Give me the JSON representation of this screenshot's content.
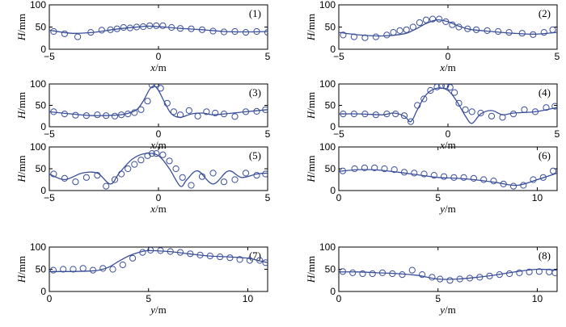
{
  "colors": {
    "series": "#3a4f9a",
    "axes": "#000000"
  },
  "chart_data": [
    {
      "type": "scatter",
      "label": "(1)",
      "xlabel_var": "x",
      "xlabel_unit": "/m",
      "ylabel_var": "H",
      "ylabel_unit": "/mm",
      "xlim": [
        -5,
        5
      ],
      "ylim": [
        0,
        100
      ],
      "xticks": [
        -5,
        0,
        5
      ],
      "yticks": [
        0,
        50,
        100
      ],
      "series": [
        {
          "mode": "line",
          "x": [
            -5,
            -4,
            -3,
            -2,
            -1,
            -0.5,
            0,
            1,
            2,
            3,
            4,
            5
          ],
          "y": [
            43,
            36,
            38,
            45,
            50,
            52,
            51,
            47,
            44,
            40,
            39,
            40
          ]
        },
        {
          "mode": "markers",
          "x": [
            -4.8,
            -4.3,
            -3.7,
            -3.1,
            -2.6,
            -2.2,
            -1.9,
            -1.6,
            -1.3,
            -1.0,
            -0.7,
            -0.4,
            -0.1,
            0.2,
            0.6,
            1.0,
            1.5,
            2.0,
            2.5,
            3.0,
            3.5,
            4.0,
            4.5,
            5.0
          ],
          "y": [
            40,
            35,
            28,
            38,
            43,
            44,
            46,
            49,
            48,
            50,
            51,
            53,
            53,
            53,
            49,
            47,
            46,
            44,
            41,
            39,
            40,
            38,
            40,
            38
          ]
        }
      ]
    },
    {
      "type": "scatter",
      "label": "(2)",
      "xlabel_var": "x",
      "xlabel_unit": "/m",
      "ylabel_var": "H",
      "ylabel_unit": "/mm",
      "xlim": [
        -5,
        5
      ],
      "ylim": [
        0,
        100
      ],
      "xticks": [
        -5,
        0,
        5
      ],
      "yticks": [
        0,
        50,
        100
      ],
      "series": [
        {
          "mode": "line",
          "x": [
            -5,
            -4,
            -3,
            -2,
            -1.5,
            -1,
            -0.5,
            0,
            0.5,
            1,
            2,
            3,
            4,
            5
          ],
          "y": [
            38,
            32,
            30,
            35,
            45,
            58,
            66,
            62,
            52,
            45,
            40,
            36,
            34,
            38
          ]
        },
        {
          "mode": "markers",
          "x": [
            -4.8,
            -4.3,
            -3.8,
            -3.3,
            -2.8,
            -2.5,
            -2.2,
            -1.9,
            -1.6,
            -1.3,
            -1.0,
            -0.7,
            -0.4,
            -0.1,
            0.2,
            0.5,
            0.9,
            1.3,
            1.8,
            2.3,
            2.8,
            3.4,
            3.9,
            4.4,
            4.8
          ],
          "y": [
            32,
            28,
            26,
            28,
            32,
            38,
            42,
            44,
            50,
            60,
            66,
            68,
            68,
            62,
            55,
            50,
            46,
            44,
            42,
            40,
            38,
            36,
            33,
            38,
            44
          ]
        }
      ]
    },
    {
      "type": "scatter",
      "label": "(3)",
      "xlabel_var": "x",
      "xlabel_unit": "/m",
      "ylabel_var": "H",
      "ylabel_unit": "/mm",
      "xlim": [
        -5,
        5
      ],
      "ylim": [
        0,
        100
      ],
      "xticks": [
        -5,
        0,
        5
      ],
      "yticks": [
        0,
        50,
        100
      ],
      "series": [
        {
          "mode": "line",
          "x": [
            -5,
            -4,
            -3,
            -2,
            -1.5,
            -1,
            -0.7,
            -0.4,
            -0.2,
            0,
            0.3,
            0.6,
            1,
            1.5,
            2,
            2.5,
            3,
            4,
            5
          ],
          "y": [
            35,
            30,
            26,
            27,
            30,
            40,
            60,
            88,
            95,
            85,
            55,
            30,
            22,
            30,
            32,
            28,
            30,
            35,
            40
          ]
        },
        {
          "mode": "markers",
          "x": [
            -4.8,
            -4.3,
            -3.8,
            -3.3,
            -2.8,
            -2.4,
            -2.0,
            -1.7,
            -1.4,
            -1.1,
            -0.8,
            -0.5,
            -0.3,
            -0.1,
            0.1,
            0.4,
            0.7,
            1.0,
            1.4,
            1.8,
            2.2,
            2.6,
            3.0,
            3.5,
            4.0,
            4.5,
            4.9
          ],
          "y": [
            35,
            30,
            27,
            26,
            28,
            26,
            25,
            28,
            30,
            33,
            40,
            60,
            98,
            100,
            90,
            55,
            35,
            28,
            38,
            25,
            35,
            32,
            30,
            24,
            35,
            36,
            40
          ]
        }
      ]
    },
    {
      "type": "scatter",
      "label": "(4)",
      "xlabel_var": "x",
      "xlabel_unit": "/m",
      "ylabel_var": "H",
      "ylabel_unit": "/mm",
      "xlim": [
        -5,
        5
      ],
      "ylim": [
        0,
        100
      ],
      "xticks": [
        -5,
        0,
        5
      ],
      "yticks": [
        0,
        50,
        100
      ],
      "series": [
        {
          "mode": "line",
          "x": [
            -5,
            -4,
            -3,
            -2.5,
            -2,
            -1.7,
            -1.4,
            -1,
            -0.5,
            0,
            0.4,
            0.8,
            1.1,
            1.5,
            2,
            2.5,
            3,
            4,
            5
          ],
          "y": [
            30,
            30,
            28,
            32,
            25,
            12,
            40,
            75,
            90,
            85,
            60,
            25,
            8,
            30,
            38,
            28,
            32,
            35,
            45
          ]
        },
        {
          "mode": "markers",
          "x": [
            -4.8,
            -4.3,
            -3.8,
            -3.3,
            -2.8,
            -2.4,
            -2.0,
            -1.7,
            -1.4,
            -1.1,
            -0.8,
            -0.5,
            -0.3,
            -0.1,
            0.1,
            0.3,
            0.5,
            0.8,
            1.1,
            1.5,
            2.0,
            2.5,
            3.0,
            3.5,
            4.0,
            4.5,
            4.9
          ],
          "y": [
            30,
            30,
            30,
            28,
            30,
            30,
            26,
            12,
            50,
            65,
            85,
            93,
            96,
            96,
            92,
            80,
            55,
            40,
            35,
            32,
            25,
            22,
            30,
            40,
            35,
            45,
            48
          ]
        }
      ]
    },
    {
      "type": "scatter",
      "label": "(5)",
      "xlabel_var": "x",
      "xlabel_unit": "/m",
      "ylabel_var": "H",
      "ylabel_unit": "/mm",
      "xlim": [
        -5,
        5
      ],
      "ylim": [
        0,
        100
      ],
      "xticks": [
        -5,
        0,
        5
      ],
      "yticks": [
        0,
        50,
        100
      ],
      "series": [
        {
          "mode": "line",
          "x": [
            -5,
            -4.3,
            -3.5,
            -2.8,
            -2.2,
            -1.8,
            -1.2,
            -0.6,
            0,
            0.5,
            1,
            1.3,
            1.8,
            2.5,
            3.2,
            3.8,
            4.5,
            5
          ],
          "y": [
            38,
            25,
            40,
            40,
            15,
            40,
            72,
            85,
            80,
            50,
            10,
            25,
            45,
            15,
            45,
            30,
            38,
            40
          ]
        },
        {
          "mode": "markers",
          "x": [
            -4.8,
            -4.3,
            -3.8,
            -3.3,
            -2.8,
            -2.4,
            -2.0,
            -1.7,
            -1.4,
            -1.1,
            -0.8,
            -0.5,
            -0.3,
            -0.1,
            0.2,
            0.5,
            0.8,
            1.1,
            1.5,
            2.0,
            2.5,
            3.0,
            3.5,
            4.0,
            4.5,
            4.9
          ],
          "y": [
            38,
            28,
            20,
            30,
            35,
            10,
            25,
            38,
            50,
            60,
            70,
            80,
            85,
            85,
            82,
            68,
            50,
            30,
            12,
            32,
            40,
            20,
            25,
            40,
            35,
            38
          ]
        }
      ]
    },
    {
      "type": "scatter",
      "label": "(6)",
      "xlabel_var": "y",
      "xlabel_unit": "/m",
      "ylabel_var": "H",
      "ylabel_unit": "/mm",
      "xlim": [
        0,
        11
      ],
      "ylim": [
        0,
        100
      ],
      "xticks": [
        0,
        5,
        10
      ],
      "yticks": [
        0,
        50,
        100
      ],
      "series": [
        {
          "mode": "line",
          "x": [
            0,
            1,
            2,
            3,
            4,
            5,
            6,
            7,
            8,
            9,
            10,
            11
          ],
          "y": [
            44,
            48,
            47,
            42,
            36,
            30,
            28,
            24,
            18,
            12,
            25,
            40
          ]
        },
        {
          "mode": "markers",
          "x": [
            0.2,
            0.8,
            1.3,
            1.8,
            2.3,
            2.8,
            3.3,
            3.8,
            4.3,
            4.8,
            5.3,
            5.8,
            6.3,
            6.8,
            7.3,
            7.8,
            8.3,
            8.8,
            9.3,
            9.8,
            10.3,
            10.8
          ],
          "y": [
            45,
            50,
            52,
            52,
            50,
            48,
            42,
            40,
            38,
            35,
            32,
            30,
            30,
            28,
            25,
            22,
            15,
            10,
            12,
            25,
            30,
            45
          ]
        }
      ]
    },
    {
      "type": "scatter",
      "label": "(7)",
      "xlabel_var": "y",
      "xlabel_unit": "/m",
      "ylabel_var": "H",
      "ylabel_unit": "/mm",
      "xlim": [
        0,
        11
      ],
      "ylim": [
        0,
        100
      ],
      "xticks": [
        0,
        5,
        10
      ],
      "yticks": [
        0,
        50,
        100
      ],
      "series": [
        {
          "mode": "line",
          "x": [
            0,
            1,
            2,
            2.5,
            3,
            3.5,
            4,
            4.5,
            5,
            6,
            7,
            8,
            9,
            10,
            10.5,
            11
          ],
          "y": [
            45,
            45,
            46,
            48,
            55,
            68,
            80,
            88,
            92,
            90,
            85,
            80,
            78,
            75,
            70,
            65
          ]
        },
        {
          "mode": "markers",
          "x": [
            0.2,
            0.7,
            1.2,
            1.7,
            2.2,
            2.7,
            3.2,
            3.7,
            4.2,
            4.7,
            5.1,
            5.6,
            6.1,
            6.6,
            7.1,
            7.6,
            8.1,
            8.6,
            9.1,
            9.6,
            10.1,
            10.6,
            10.9
          ],
          "y": [
            48,
            50,
            50,
            52,
            48,
            52,
            50,
            60,
            75,
            88,
            93,
            92,
            90,
            88,
            85,
            82,
            80,
            78,
            76,
            72,
            70,
            70,
            65
          ]
        }
      ]
    },
    {
      "type": "scatter",
      "label": "(8)",
      "xlabel_var": "y",
      "xlabel_unit": "/m",
      "ylabel_var": "H",
      "ylabel_unit": "/mm",
      "xlim": [
        0,
        11
      ],
      "ylim": [
        0,
        100
      ],
      "xticks": [
        0,
        5,
        10
      ],
      "yticks": [
        0,
        50,
        100
      ],
      "series": [
        {
          "mode": "line",
          "x": [
            0,
            1,
            2,
            3,
            4,
            5,
            6,
            7,
            8,
            9,
            10,
            11
          ],
          "y": [
            44,
            44,
            42,
            40,
            36,
            28,
            28,
            32,
            38,
            45,
            50,
            48
          ]
        },
        {
          "mode": "markers",
          "x": [
            0.2,
            0.7,
            1.2,
            1.7,
            2.2,
            2.7,
            3.2,
            3.7,
            4.2,
            4.7,
            5.1,
            5.6,
            6.1,
            6.6,
            7.1,
            7.6,
            8.1,
            8.6,
            9.1,
            9.6,
            10.1,
            10.6,
            10.9
          ],
          "y": [
            45,
            42,
            40,
            40,
            42,
            40,
            38,
            48,
            38,
            32,
            28,
            25,
            28,
            30,
            32,
            35,
            38,
            40,
            42,
            44,
            45,
            44,
            42
          ]
        }
      ]
    }
  ]
}
